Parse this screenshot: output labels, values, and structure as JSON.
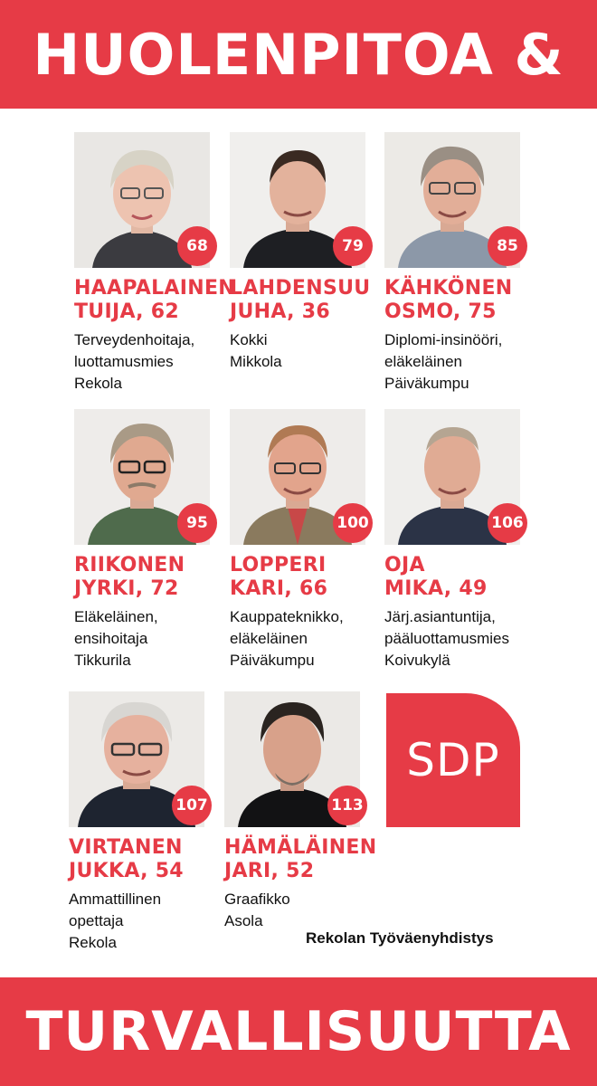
{
  "header": {
    "title": "HUOLENPITOA &"
  },
  "footer": {
    "title": "TURVALLISUUTTA"
  },
  "logo": {
    "text": "SDP",
    "color": "#e63b46"
  },
  "organization": "Rekolan Työväenyhdistys",
  "candidates": [
    {
      "number": "68",
      "name1": "HAAPALAINEN",
      "name2": "TUIJA, 62",
      "desc": [
        "Terveydenhoitaja,",
        "luottamusmies",
        "Rekola"
      ]
    },
    {
      "number": "79",
      "name1": "LAHDENSUU",
      "name2": "JUHA, 36",
      "desc": [
        "Kokki",
        "Mikkola"
      ]
    },
    {
      "number": "85",
      "name1": "KÄHKÖNEN",
      "name2": "OSMO, 75",
      "desc": [
        "Diplomi-insinööri,",
        "eläkeläinen",
        "Päiväkumpu"
      ]
    },
    {
      "number": "95",
      "name1": "RIIKONEN",
      "name2": "JYRKI, 72",
      "desc": [
        "Eläkeläinen,",
        "ensihoitaja",
        "Tikkurila"
      ]
    },
    {
      "number": "100",
      "name1": "LOPPERI",
      "name2": "KARI, 66",
      "desc": [
        "Kauppateknikko,",
        "eläkeläinen",
        "Päiväkumpu"
      ]
    },
    {
      "number": "106",
      "name1": "OJA",
      "name2": "MIKA, 49",
      "desc": [
        "Järj.asiantuntija,",
        "pääluottamusmies",
        "Koivukylä"
      ]
    },
    {
      "number": "107",
      "name1": "VIRTANEN",
      "name2": "JUKKA, 54",
      "desc": [
        "Ammattillinen",
        "opettaja",
        "Rekola"
      ]
    },
    {
      "number": "113",
      "name1": "HÄMÄLÄINEN",
      "name2": "JARI, 52",
      "desc": [
        "Graafikko",
        "Asola"
      ]
    }
  ]
}
